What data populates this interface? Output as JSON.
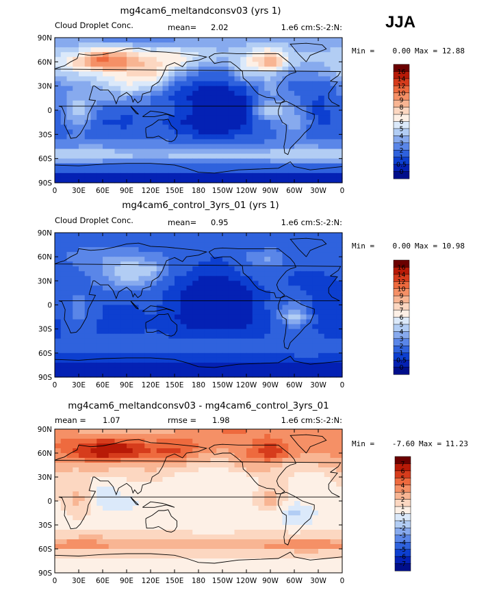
{
  "season": "JJA",
  "chart_data": [
    {
      "type": "heatmap",
      "title": "mg4cam6_meltandconsv03 (yrs 1)",
      "variable": "Cloud Droplet Conc.",
      "stat_label": "mean=",
      "stat_value": "2.02",
      "units": "1.e6 cm:S:-2:N:",
      "min_label": "Min =",
      "min": "0.00",
      "max_label": "Max =",
      "max": "12.88",
      "xticks": [
        "0",
        "30E",
        "60E",
        "90E",
        "120E",
        "150E",
        "180",
        "150W",
        "120W",
        "90W",
        "60W",
        "30W",
        "0"
      ],
      "yticks": [
        "90N",
        "60N",
        "30N",
        "0",
        "30S",
        "60S",
        "90S"
      ],
      "xlim": [
        0,
        360
      ],
      "ylim": [
        -90,
        90
      ],
      "levels": [
        "16",
        "14",
        "12",
        "10",
        "9",
        "8",
        "7",
        "6",
        "5",
        "4",
        "3",
        "2",
        "1",
        "0.5",
        "0"
      ],
      "colors": [
        "#6b0000",
        "#b81a07",
        "#d63c1c",
        "#ee6a3e",
        "#f59066",
        "#f8b593",
        "#fcd7c1",
        "#fdf0e6",
        "#dbe9fa",
        "#b2cdf4",
        "#87aaee",
        "#5a86e8",
        "#2f62dd",
        "#0d3fd0",
        "#0421b4",
        "#000e8a"
      ],
      "field": [
        {
          "lat": 85,
          "v": [
            3.5,
            3.2,
            3.0,
            2.8,
            2.8,
            3.0,
            3.2,
            3.4,
            3.6,
            3.8,
            3.6,
            3.4,
            3.5
          ]
        },
        {
          "lat": 70,
          "v": [
            4.5,
            6.0,
            9.0,
            8.0,
            6.0,
            6.5,
            5.0,
            4.0,
            5.0,
            7.5,
            4.0,
            4.0,
            4.5
          ]
        },
        {
          "lat": 60,
          "v": [
            5.0,
            8.0,
            11.0,
            9.5,
            7.5,
            7.0,
            4.5,
            3.5,
            6.0,
            10.0,
            4.5,
            4.0,
            5.0
          ]
        },
        {
          "lat": 45,
          "v": [
            4.5,
            5.0,
            6.0,
            7.0,
            7.5,
            4.0,
            2.0,
            1.5,
            5.0,
            4.5,
            2.5,
            3.0,
            4.5
          ]
        },
        {
          "lat": 30,
          "v": [
            2.5,
            3.0,
            4.0,
            6.0,
            5.0,
            1.2,
            0.5,
            0.4,
            1.0,
            3.5,
            1.5,
            1.0,
            2.5
          ]
        },
        {
          "lat": 15,
          "v": [
            2.0,
            4.0,
            3.0,
            3.0,
            2.0,
            0.8,
            0.3,
            0.3,
            0.5,
            3.0,
            2.5,
            0.8,
            2.0
          ]
        },
        {
          "lat": 0,
          "v": [
            1.5,
            5.0,
            1.5,
            1.0,
            2.0,
            1.0,
            0.3,
            0.3,
            0.4,
            5.5,
            3.0,
            0.6,
            1.5
          ]
        },
        {
          "lat": -15,
          "v": [
            1.2,
            3.5,
            1.0,
            0.8,
            1.5,
            0.6,
            0.3,
            0.3,
            0.4,
            2.0,
            4.0,
            0.8,
            1.2
          ]
        },
        {
          "lat": -30,
          "v": [
            1.5,
            2.0,
            1.2,
            1.2,
            1.8,
            1.0,
            0.5,
            0.5,
            0.8,
            1.5,
            2.5,
            1.2,
            1.5
          ]
        },
        {
          "lat": -45,
          "v": [
            2.5,
            3.0,
            3.0,
            2.5,
            2.5,
            2.5,
            2.5,
            2.5,
            2.5,
            2.5,
            3.0,
            3.0,
            2.5
          ]
        },
        {
          "lat": -55,
          "v": [
            5.0,
            5.5,
            5.0,
            4.5,
            4.0,
            4.5,
            4.5,
            4.5,
            4.5,
            5.0,
            5.5,
            5.5,
            5.0
          ]
        },
        {
          "lat": -65,
          "v": [
            2.5,
            2.5,
            2.5,
            2.5,
            2.5,
            2.5,
            2.5,
            2.5,
            2.5,
            2.5,
            2.5,
            2.5,
            2.5
          ]
        },
        {
          "lat": -80,
          "v": [
            0.3,
            0.3,
            0.3,
            0.3,
            0.3,
            0.3,
            0.3,
            0.3,
            0.3,
            0.3,
            0.3,
            0.3,
            0.3
          ]
        }
      ]
    },
    {
      "type": "heatmap",
      "title": "mg4cam6_control_3yrs_01 (yrs 1)",
      "variable": "Cloud Droplet Conc.",
      "stat_label": "mean=",
      "stat_value": "0.95",
      "units": "1.e6 cm:S:-2:N:",
      "min_label": "Min =",
      "min": "0.00",
      "max_label": "Max =",
      "max": "10.98",
      "xticks": [
        "0",
        "30E",
        "60E",
        "90E",
        "120E",
        "150E",
        "180",
        "150W",
        "120W",
        "90W",
        "60W",
        "30W",
        "0"
      ],
      "yticks": [
        "90N",
        "60N",
        "30N",
        "0",
        "30S",
        "60S",
        "90S"
      ],
      "xlim": [
        0,
        360
      ],
      "ylim": [
        -90,
        90
      ],
      "levels": [
        "16",
        "14",
        "12",
        "10",
        "9",
        "8",
        "7",
        "6",
        "5",
        "4",
        "3",
        "2",
        "1",
        "0.5",
        "0"
      ],
      "colors": [
        "#6b0000",
        "#b81a07",
        "#d63c1c",
        "#ee6a3e",
        "#f59066",
        "#f8b593",
        "#fcd7c1",
        "#fdf0e6",
        "#dbe9fa",
        "#b2cdf4",
        "#87aaee",
        "#5a86e8",
        "#2f62dd",
        "#0d3fd0",
        "#0421b4",
        "#000e8a"
      ],
      "field": [
        {
          "lat": 85,
          "v": [
            1.0,
            1.0,
            1.0,
            1.0,
            1.0,
            1.0,
            1.0,
            1.0,
            1.0,
            1.0,
            1.0,
            1.0,
            1.0
          ]
        },
        {
          "lat": 70,
          "v": [
            1.5,
            2.0,
            2.5,
            2.0,
            1.8,
            1.5,
            1.2,
            1.0,
            1.5,
            2.0,
            1.2,
            1.2,
            1.5
          ]
        },
        {
          "lat": 60,
          "v": [
            1.5,
            2.5,
            3.0,
            3.0,
            2.5,
            1.8,
            1.2,
            1.0,
            2.0,
            3.5,
            1.2,
            1.2,
            1.5
          ]
        },
        {
          "lat": 45,
          "v": [
            1.5,
            2.0,
            3.0,
            5.0,
            4.5,
            1.5,
            0.8,
            0.6,
            1.5,
            2.0,
            1.0,
            1.0,
            1.5
          ]
        },
        {
          "lat": 30,
          "v": [
            1.0,
            1.5,
            2.5,
            4.5,
            3.0,
            0.8,
            0.4,
            0.4,
            0.6,
            1.5,
            0.8,
            0.6,
            1.0
          ]
        },
        {
          "lat": 15,
          "v": [
            1.0,
            2.0,
            1.5,
            2.0,
            1.5,
            0.6,
            0.3,
            0.3,
            0.4,
            1.0,
            1.5,
            0.6,
            1.0
          ]
        },
        {
          "lat": 0,
          "v": [
            0.8,
            2.5,
            1.0,
            0.8,
            1.2,
            0.6,
            0.3,
            0.3,
            0.3,
            1.2,
            2.5,
            0.5,
            0.8
          ]
        },
        {
          "lat": -15,
          "v": [
            0.8,
            2.5,
            0.8,
            0.6,
            1.0,
            0.5,
            0.3,
            0.3,
            0.3,
            1.0,
            4.5,
            0.6,
            0.8
          ]
        },
        {
          "lat": -30,
          "v": [
            0.8,
            1.5,
            0.8,
            0.8,
            1.0,
            0.6,
            0.4,
            0.4,
            0.5,
            0.8,
            2.0,
            0.8,
            0.8
          ]
        },
        {
          "lat": -45,
          "v": [
            1.0,
            1.2,
            1.2,
            1.2,
            1.2,
            1.2,
            1.2,
            1.2,
            1.2,
            1.2,
            1.5,
            1.2,
            1.0
          ]
        },
        {
          "lat": -55,
          "v": [
            1.5,
            1.8,
            1.5,
            1.5,
            1.5,
            1.5,
            1.5,
            1.5,
            1.5,
            1.5,
            1.8,
            1.8,
            1.5
          ]
        },
        {
          "lat": -65,
          "v": [
            0.8,
            0.8,
            0.8,
            0.8,
            0.8,
            0.8,
            0.8,
            0.8,
            0.8,
            0.8,
            0.8,
            0.8,
            0.8
          ]
        },
        {
          "lat": -80,
          "v": [
            0.2,
            0.2,
            0.2,
            0.2,
            0.2,
            0.2,
            0.2,
            0.2,
            0.2,
            0.2,
            0.2,
            0.2,
            0.2
          ]
        }
      ]
    },
    {
      "type": "heatmap",
      "title": "mg4cam6_meltandconsv03 - mg4cam6_control_3yrs_01",
      "variable": "",
      "stat_label": "mean =",
      "stat_value": "1.07",
      "stat2_label": "rmse =",
      "stat2_value": "1.98",
      "units": "1.e6 cm:S:-2:N:",
      "min_label": "Min =",
      "min": "-7.60",
      "max_label": "Max =",
      "max": "11.23",
      "xticks": [
        "0",
        "30E",
        "60E",
        "90E",
        "120E",
        "150E",
        "180",
        "150W",
        "120W",
        "90W",
        "60W",
        "30W",
        "0"
      ],
      "yticks": [
        "90N",
        "60N",
        "30N",
        "0",
        "30S",
        "60S",
        "90S"
      ],
      "xlim": [
        0,
        360
      ],
      "ylim": [
        -90,
        90
      ],
      "levels": [
        "7",
        "6",
        "5",
        "4",
        "3",
        "2",
        "1",
        "0",
        "-1",
        "-2",
        "-3",
        "-4",
        "-5",
        "-6",
        "-7"
      ],
      "colors": [
        "#6b0000",
        "#b81a07",
        "#d63c1c",
        "#ee6a3e",
        "#f59066",
        "#f8b593",
        "#fcd7c1",
        "#fdf0e6",
        "#dbe9fa",
        "#b2cdf4",
        "#87aaee",
        "#5a86e8",
        "#2f62dd",
        "#0d3fd0",
        "#0421b4",
        "#000e8a"
      ],
      "field": [
        {
          "lat": 85,
          "v": [
            3.5,
            3.0,
            2.5,
            2.5,
            2.5,
            3.0,
            3.5,
            4.0,
            4.0,
            3.5,
            3.5,
            3.0,
            3.5
          ]
        },
        {
          "lat": 70,
          "v": [
            4.0,
            5.0,
            6.5,
            6.0,
            4.5,
            5.0,
            4.0,
            3.0,
            3.5,
            5.5,
            3.0,
            3.0,
            4.0
          ]
        },
        {
          "lat": 60,
          "v": [
            3.5,
            5.5,
            7.0,
            6.5,
            5.0,
            5.5,
            3.5,
            2.5,
            4.0,
            6.5,
            3.5,
            3.0,
            3.5
          ]
        },
        {
          "lat": 45,
          "v": [
            2.5,
            2.5,
            3.0,
            2.0,
            2.5,
            2.5,
            1.5,
            1.0,
            3.0,
            2.5,
            1.5,
            2.0,
            2.5
          ]
        },
        {
          "lat": 30,
          "v": [
            1.5,
            1.2,
            1.0,
            1.0,
            1.5,
            0.6,
            0.2,
            0.1,
            0.5,
            1.5,
            0.8,
            0.5,
            1.5
          ]
        },
        {
          "lat": 15,
          "v": [
            1.0,
            2.0,
            -0.5,
            0.8,
            0.5,
            0.3,
            0.1,
            0.1,
            0.2,
            2.0,
            0.8,
            0.2,
            1.0
          ]
        },
        {
          "lat": 0,
          "v": [
            0.8,
            2.5,
            -0.8,
            -0.5,
            0.5,
            0.4,
            0.1,
            0.1,
            0.2,
            3.0,
            0.3,
            0.2,
            0.8
          ]
        },
        {
          "lat": -15,
          "v": [
            0.5,
            1.5,
            0.2,
            0.2,
            0.5,
            0.1,
            0.1,
            0.1,
            0.2,
            1.0,
            -1.5,
            0.2,
            0.5
          ]
        },
        {
          "lat": -30,
          "v": [
            0.8,
            0.5,
            0.5,
            0.5,
            0.8,
            0.4,
            0.2,
            0.2,
            0.3,
            0.8,
            -0.5,
            0.4,
            0.8
          ]
        },
        {
          "lat": -45,
          "v": [
            1.5,
            2.0,
            2.0,
            1.5,
            1.5,
            1.5,
            1.5,
            1.5,
            1.5,
            1.5,
            1.8,
            2.0,
            1.5
          ]
        },
        {
          "lat": -55,
          "v": [
            3.5,
            4.0,
            3.5,
            3.0,
            2.5,
            3.0,
            3.0,
            3.0,
            3.0,
            3.5,
            4.0,
            4.0,
            3.5
          ]
        },
        {
          "lat": -65,
          "v": [
            1.5,
            1.5,
            1.5,
            1.5,
            1.5,
            1.5,
            1.5,
            1.5,
            1.5,
            1.5,
            1.5,
            1.5,
            1.5
          ]
        },
        {
          "lat": -80,
          "v": [
            0.1,
            0.1,
            0.1,
            0.1,
            0.1,
            0.1,
            0.1,
            0.1,
            0.1,
            0.1,
            0.1,
            0.1,
            0.1
          ]
        }
      ]
    }
  ]
}
